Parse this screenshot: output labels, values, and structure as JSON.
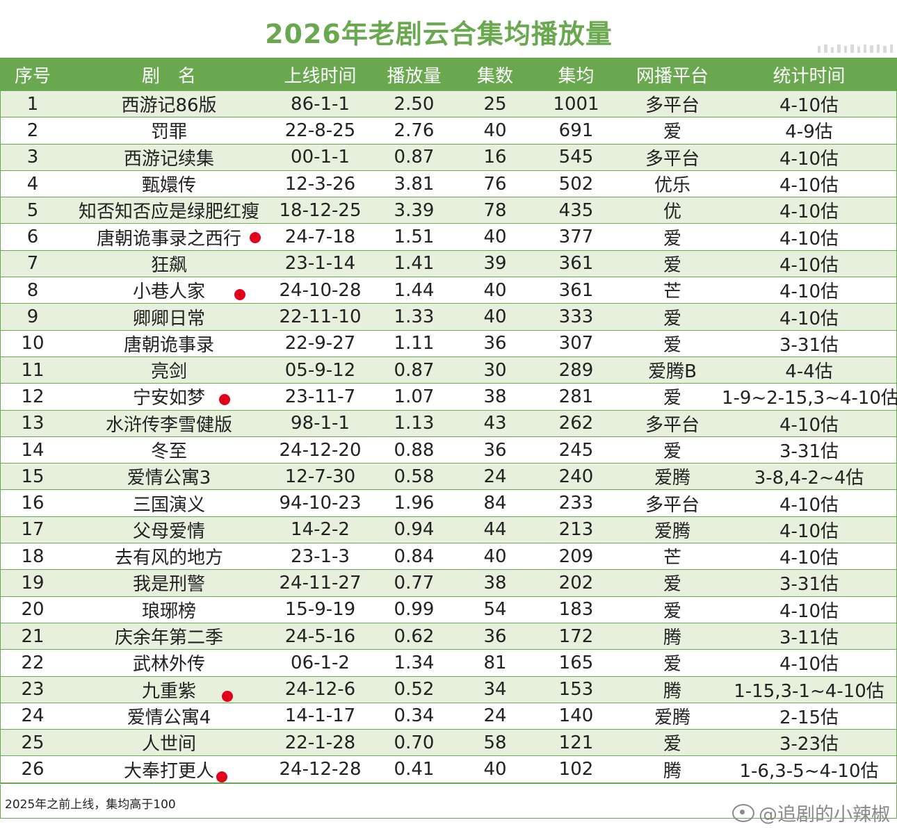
{
  "title": "2026年老剧云合集均播放量",
  "headers": [
    "序号",
    "剧　名",
    "上线时间",
    "播放量",
    "集数",
    "集均",
    "网播平台",
    "统计时间"
  ],
  "rows": [
    {
      "no": "1",
      "name": "西游记86版",
      "date": "86-1-1",
      "plays": "2.50",
      "eps": "25",
      "avg": "1001",
      "platform": "多平台",
      "stat": "4-10估"
    },
    {
      "no": "2",
      "name": "罚罪",
      "date": "22-8-25",
      "plays": "2.76",
      "eps": "40",
      "avg": "691",
      "platform": "爱",
      "stat": "4-9估"
    },
    {
      "no": "3",
      "name": "西游记续集",
      "date": "00-1-1",
      "plays": "0.87",
      "eps": "16",
      "avg": "545",
      "platform": "多平台",
      "stat": "4-10估"
    },
    {
      "no": "4",
      "name": "甄嬛传",
      "date": "12-3-26",
      "plays": "3.81",
      "eps": "76",
      "avg": "502",
      "platform": "优乐",
      "stat": "4-10估"
    },
    {
      "no": "5",
      "name": "知否知否应是绿肥红瘦",
      "date": "18-12-25",
      "plays": "3.39",
      "eps": "78",
      "avg": "435",
      "platform": "优",
      "stat": "4-10估"
    },
    {
      "no": "6",
      "name": "唐朝诡事录之西行",
      "date": "24-7-18",
      "plays": "1.51",
      "eps": "40",
      "avg": "377",
      "platform": "爱",
      "stat": "4-10估",
      "marked": true
    },
    {
      "no": "7",
      "name": "狂飙",
      "date": "23-1-14",
      "plays": "1.41",
      "eps": "39",
      "avg": "361",
      "platform": "爱",
      "stat": "4-10估"
    },
    {
      "no": "8",
      "name": "小巷人家",
      "date": "24-10-28",
      "plays": "1.44",
      "eps": "40",
      "avg": "361",
      "platform": "芒",
      "stat": "4-10估",
      "marked": true
    },
    {
      "no": "9",
      "name": "卿卿日常",
      "date": "22-11-10",
      "plays": "1.33",
      "eps": "40",
      "avg": "333",
      "platform": "爱",
      "stat": "4-10估"
    },
    {
      "no": "10",
      "name": "唐朝诡事录",
      "date": "22-9-27",
      "plays": "1.11",
      "eps": "36",
      "avg": "307",
      "platform": "爱",
      "stat": "3-31估"
    },
    {
      "no": "11",
      "name": "亮剑",
      "date": "05-9-12",
      "plays": "0.87",
      "eps": "30",
      "avg": "289",
      "platform": "爱腾B",
      "stat": "4-4估"
    },
    {
      "no": "12",
      "name": "宁安如梦",
      "date": "23-11-7",
      "plays": "1.07",
      "eps": "38",
      "avg": "281",
      "platform": "爱",
      "stat": "1-9~2-15,3~4-10估",
      "marked": true
    },
    {
      "no": "13",
      "name": "水浒传李雪健版",
      "date": "98-1-1",
      "plays": "1.13",
      "eps": "43",
      "avg": "262",
      "platform": "多平台",
      "stat": "4-10估"
    },
    {
      "no": "14",
      "name": "冬至",
      "date": "24-12-20",
      "plays": "0.88",
      "eps": "36",
      "avg": "245",
      "platform": "爱",
      "stat": "3-31估"
    },
    {
      "no": "15",
      "name": "爱情公寓3",
      "date": "12-7-30",
      "plays": "0.58",
      "eps": "24",
      "avg": "240",
      "platform": "爱腾",
      "stat": "3-8,4-2~4估"
    },
    {
      "no": "16",
      "name": "三国演义",
      "date": "94-10-23",
      "plays": "1.96",
      "eps": "84",
      "avg": "233",
      "platform": "多平台",
      "stat": "4-10估"
    },
    {
      "no": "17",
      "name": "父母爱情",
      "date": "14-2-2",
      "plays": "0.94",
      "eps": "44",
      "avg": "213",
      "platform": "爱腾",
      "stat": "4-10估"
    },
    {
      "no": "18",
      "name": "去有风的地方",
      "date": "23-1-3",
      "plays": "0.84",
      "eps": "40",
      "avg": "209",
      "platform": "芒",
      "stat": "4-10估"
    },
    {
      "no": "19",
      "name": "我是刑警",
      "date": "24-11-27",
      "plays": "0.77",
      "eps": "38",
      "avg": "202",
      "platform": "爱",
      "stat": "3-31估"
    },
    {
      "no": "20",
      "name": "琅琊榜",
      "date": "15-9-19",
      "plays": "0.99",
      "eps": "54",
      "avg": "183",
      "platform": "爱",
      "stat": "4-10估"
    },
    {
      "no": "21",
      "name": "庆余年第二季",
      "date": "24-5-16",
      "plays": "0.62",
      "eps": "36",
      "avg": "172",
      "platform": "腾",
      "stat": "3-11估"
    },
    {
      "no": "22",
      "name": "武林外传",
      "date": "06-1-2",
      "plays": "1.34",
      "eps": "81",
      "avg": "165",
      "platform": "爱",
      "stat": "4-10估"
    },
    {
      "no": "23",
      "name": "九重紫",
      "date": "24-12-6",
      "plays": "0.52",
      "eps": "34",
      "avg": "153",
      "platform": "腾",
      "stat": "1-15,3-1~4-10估",
      "marked": true
    },
    {
      "no": "24",
      "name": "爱情公寓4",
      "date": "14-1-17",
      "plays": "0.34",
      "eps": "24",
      "avg": "140",
      "platform": "爱腾",
      "stat": "2-15估"
    },
    {
      "no": "25",
      "name": "人世间",
      "date": "22-1-28",
      "plays": "0.70",
      "eps": "58",
      "avg": "121",
      "platform": "爱",
      "stat": "3-23估"
    },
    {
      "no": "26",
      "name": "大奉打更人",
      "date": "24-12-28",
      "plays": "0.41",
      "eps": "40",
      "avg": "102",
      "platform": "腾",
      "stat": "1-6,3-5~4-10估",
      "marked": true
    }
  ],
  "note": "2025年之前上线，集均高于100",
  "watermark": "@追剧的小辣椒",
  "colors": {
    "accent": "#6aa84f",
    "stripe": "#e6f0dc",
    "marker": "#e3001b"
  },
  "icons": {
    "watermark": "weibo-icon",
    "marker": "red-dot-marker"
  }
}
